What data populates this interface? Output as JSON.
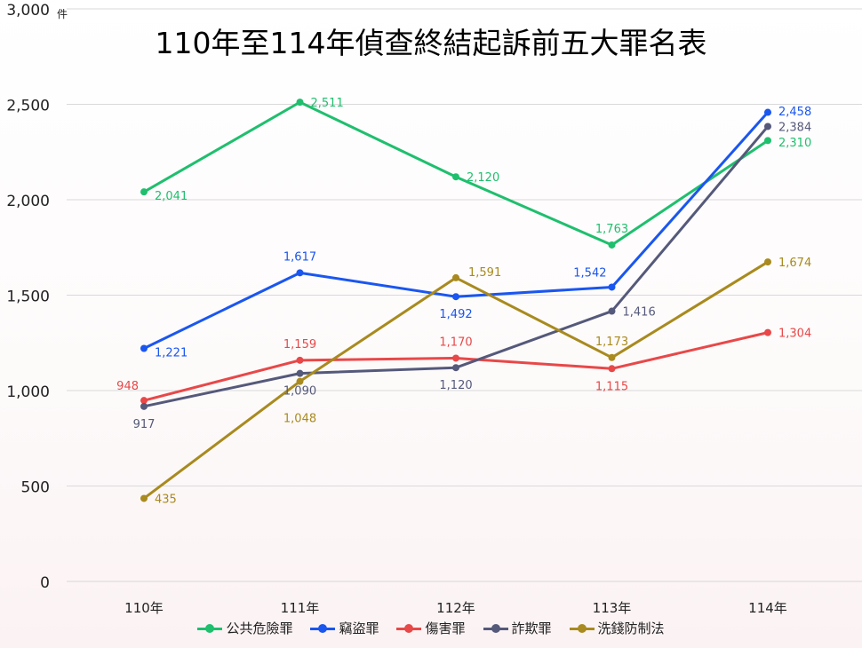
{
  "chart_data": {
    "type": "line",
    "title": "110年至114年偵查終結起訴前五大罪名表",
    "ylabel": "件",
    "xlabel": "",
    "ylim": [
      0,
      3000
    ],
    "yticks": [
      0,
      500,
      1000,
      1500,
      2000,
      2500,
      3000
    ],
    "ytick_labels": [
      "0",
      "500",
      "1,000",
      "1,500",
      "2,000",
      "2,500",
      "3,000"
    ],
    "categories": [
      "110年",
      "111年",
      "112年",
      "113年",
      "114年"
    ],
    "grid": true,
    "legend_position": "bottom",
    "series": [
      {
        "name": "公共危險罪",
        "color": "#1fbf6e",
        "values": [
          2041,
          2511,
          2120,
          1763,
          2310
        ],
        "labels": [
          "2,041",
          "2,511",
          "2,120",
          "1,763",
          "2,310"
        ]
      },
      {
        "name": "竊盜罪",
        "color": "#1a56f0",
        "values": [
          1221,
          1617,
          1492,
          1542,
          2458
        ],
        "labels": [
          "1,221",
          "1,617",
          "1,492",
          "1,542",
          "2,458"
        ]
      },
      {
        "name": "傷害罪",
        "color": "#e84848",
        "values": [
          948,
          1159,
          1170,
          1115,
          1304
        ],
        "labels": [
          "948",
          "1,159",
          "1,170",
          "1,115",
          "1,304"
        ]
      },
      {
        "name": "詐欺罪",
        "color": "#55597a",
        "values": [
          917,
          1090,
          1120,
          1416,
          2384
        ],
        "labels": [
          "917",
          "1,090",
          "1,120",
          "1,416",
          "2,384"
        ]
      },
      {
        "name": "洗錢防制法",
        "color": "#a88a1e",
        "values": [
          435,
          1048,
          1591,
          1173,
          1674
        ],
        "labels": [
          "435",
          "1,048",
          "1,591",
          "1,173",
          "1,674"
        ]
      }
    ]
  }
}
